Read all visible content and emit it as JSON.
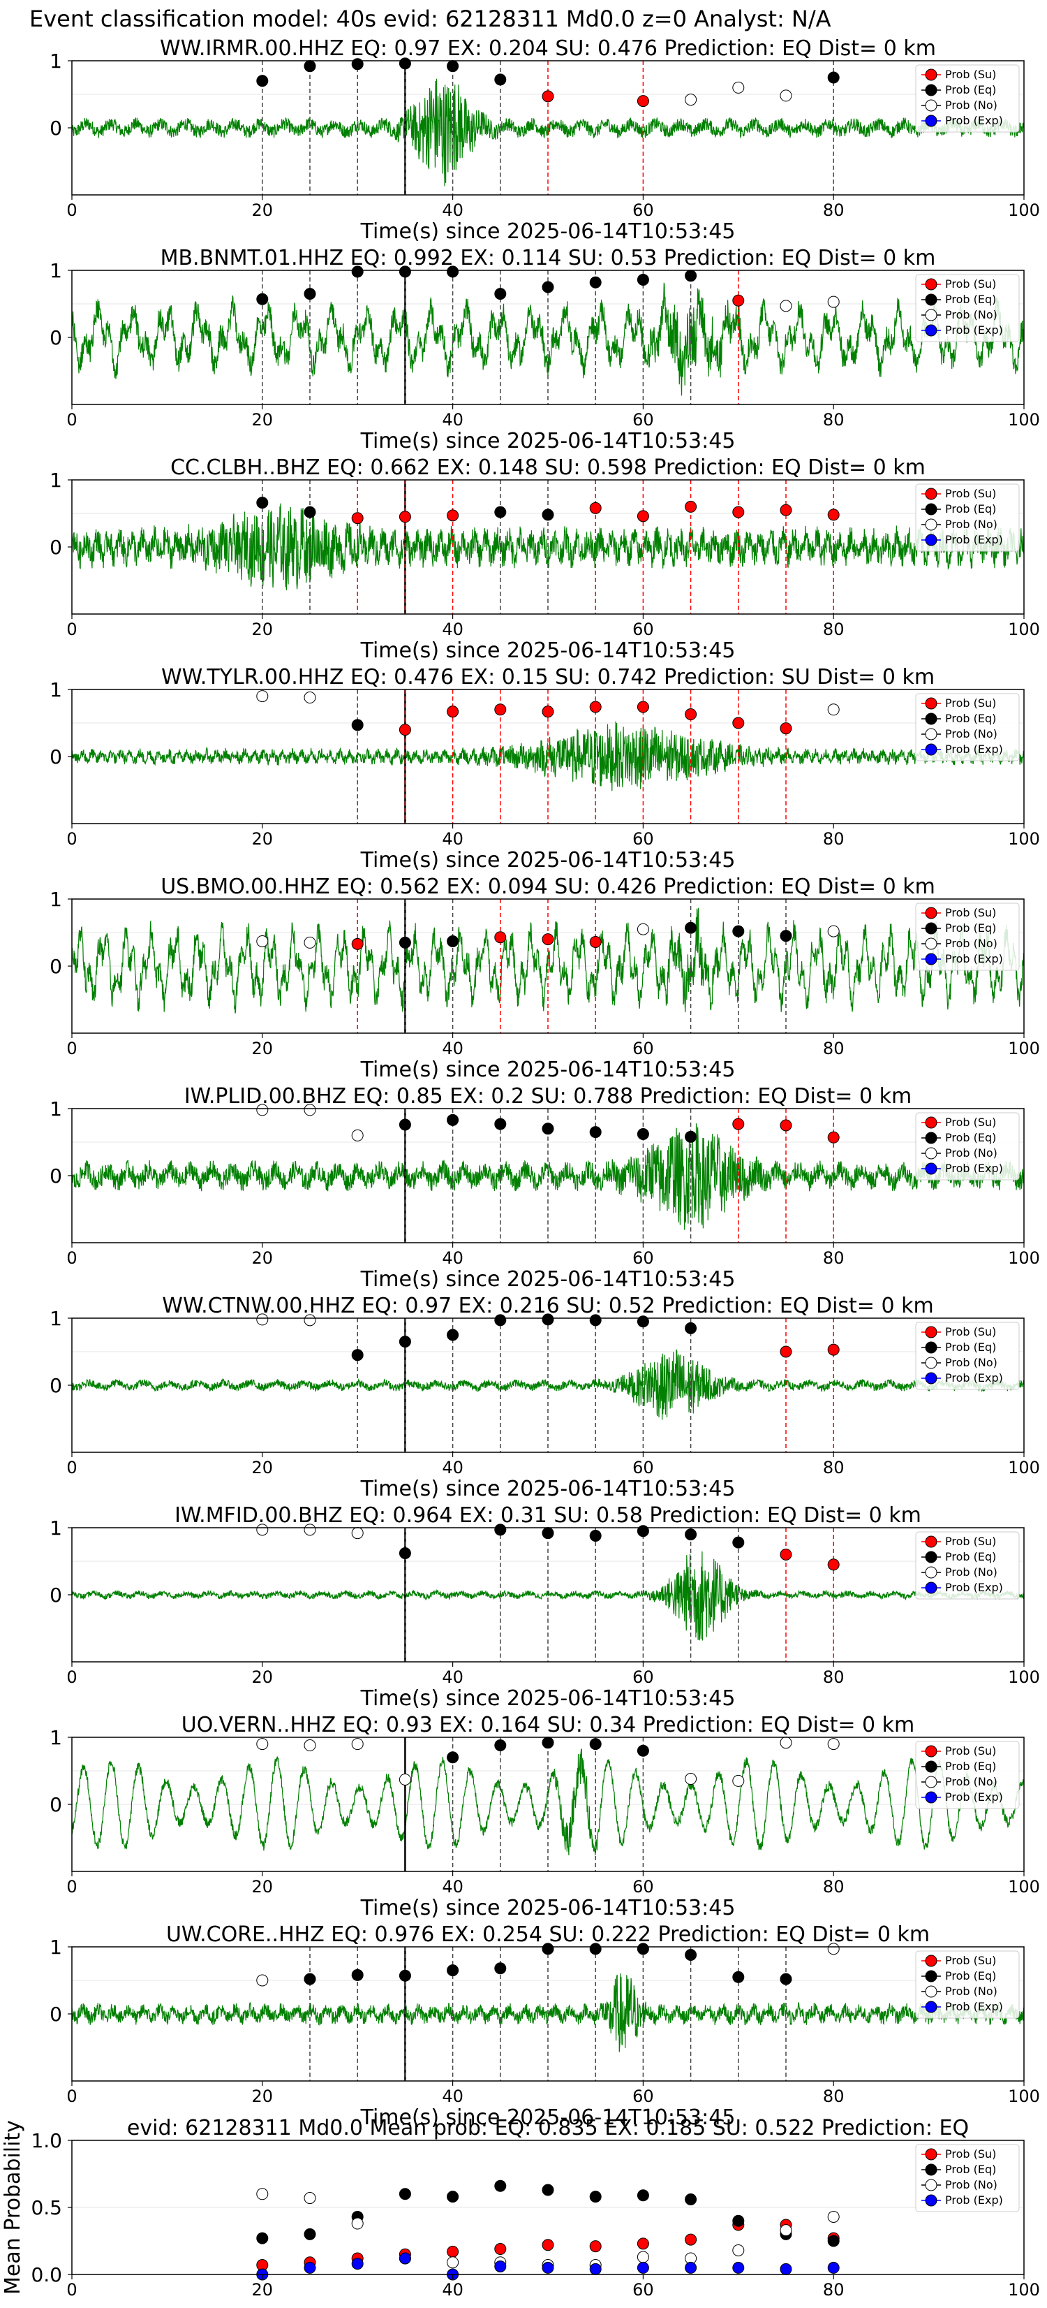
{
  "page_title": "Event classification model: 40s evid: 62128311 Md0.0 z=0 Analyst: N/A",
  "legend_labels": [
    "Prob (Su)",
    "Prob (Eq)",
    "Prob (No)",
    "Prob (Exp)"
  ],
  "colors": {
    "su": "#ff0000",
    "eq": "#000000",
    "no": "#ffffff",
    "exp": "#0000ff",
    "wave": "#008000",
    "su_line": "#ff0000",
    "eq_line": "#000000"
  },
  "chart_data": [
    {
      "type": "line",
      "title": "WW.IRMR.00.HHZ   EQ: 0.97   EX: 0.204   SU: 0.476   Prediction: EQ    Dist= 0 km",
      "xlabel": "Time(s) since 2025-06-14T10:53:45",
      "xlim": [
        0,
        100
      ],
      "ylim": [
        -1,
        1
      ],
      "x_ticks": [
        "0",
        "20",
        "40",
        "60",
        "80",
        "100"
      ],
      "y_ticks": [
        "0",
        "1"
      ],
      "arrival_time": 35,
      "waveform": {
        "style": "event",
        "amplitude": 0.12,
        "burst_center": 39,
        "burst_width": 3,
        "burst_amp": 0.9,
        "period": 2.6
      },
      "points": [
        {
          "t": 20,
          "cls": "eq",
          "p": 0.7
        },
        {
          "t": 25,
          "cls": "eq",
          "p": 0.92
        },
        {
          "t": 30,
          "cls": "eq",
          "p": 0.95
        },
        {
          "t": 35,
          "cls": "eq",
          "p": 0.96
        },
        {
          "t": 40,
          "cls": "eq",
          "p": 0.92
        },
        {
          "t": 45,
          "cls": "eq",
          "p": 0.72
        },
        {
          "t": 50,
          "cls": "su",
          "p": 0.47
        },
        {
          "t": 60,
          "cls": "su",
          "p": 0.4
        },
        {
          "t": 65,
          "cls": "no",
          "p": 0.42
        },
        {
          "t": 70,
          "cls": "no",
          "p": 0.6
        },
        {
          "t": 75,
          "cls": "no",
          "p": 0.48
        },
        {
          "t": 80,
          "cls": "eq",
          "p": 0.75
        }
      ]
    },
    {
      "type": "line",
      "title": "MB.BNMT.01.HHZ   EQ: 0.992  EX: 0.114  SU: 0.53   Prediction: EQ    Dist= 0 km",
      "xlabel": "Time(s) since 2025-06-14T10:53:45",
      "xlim": [
        0,
        100
      ],
      "ylim": [
        -1,
        1
      ],
      "x_ticks": [
        "0",
        "20",
        "40",
        "60",
        "80",
        "100"
      ],
      "y_ticks": [
        "0",
        "1"
      ],
      "arrival_time": 35,
      "waveform": {
        "style": "noisy",
        "amplitude": 0.45,
        "burst_center": 65,
        "burst_width": 4,
        "burst_amp": 0.4,
        "period": 3.5
      },
      "points": [
        {
          "t": 20,
          "cls": "eq",
          "p": 0.57
        },
        {
          "t": 25,
          "cls": "eq",
          "p": 0.65
        },
        {
          "t": 30,
          "cls": "eq",
          "p": 0.98
        },
        {
          "t": 35,
          "cls": "eq",
          "p": 0.98
        },
        {
          "t": 40,
          "cls": "eq",
          "p": 0.98
        },
        {
          "t": 45,
          "cls": "eq",
          "p": 0.65
        },
        {
          "t": 50,
          "cls": "eq",
          "p": 0.75
        },
        {
          "t": 55,
          "cls": "eq",
          "p": 0.82
        },
        {
          "t": 60,
          "cls": "eq",
          "p": 0.86
        },
        {
          "t": 65,
          "cls": "eq",
          "p": 0.92
        },
        {
          "t": 70,
          "cls": "su",
          "p": 0.55
        },
        {
          "t": 75,
          "cls": "no",
          "p": 0.47
        },
        {
          "t": 80,
          "cls": "no",
          "p": 0.53
        }
      ]
    },
    {
      "type": "line",
      "title": "CC.CLBH..BHZ   EQ: 0.662  EX: 0.148  SU: 0.598   Prediction: EQ    Dist= 0 km",
      "xlabel": "Time(s) since 2025-06-14T10:53:45",
      "xlim": [
        0,
        100
      ],
      "ylim": [
        -1,
        1
      ],
      "x_ticks": [
        "0",
        "20",
        "40",
        "60",
        "80",
        "100"
      ],
      "y_ticks": [
        "0",
        "1"
      ],
      "arrival_time": 35,
      "waveform": {
        "style": "event",
        "amplitude": 0.25,
        "burst_center": 22,
        "burst_width": 6,
        "burst_amp": 0.45,
        "period": 1.2
      },
      "points": [
        {
          "t": 20,
          "cls": "eq",
          "p": 0.66
        },
        {
          "t": 25,
          "cls": "eq",
          "p": 0.52
        },
        {
          "t": 30,
          "cls": "su",
          "p": 0.43
        },
        {
          "t": 35,
          "cls": "su",
          "p": 0.45
        },
        {
          "t": 40,
          "cls": "su",
          "p": 0.47
        },
        {
          "t": 45,
          "cls": "eq",
          "p": 0.52
        },
        {
          "t": 50,
          "cls": "eq",
          "p": 0.48
        },
        {
          "t": 55,
          "cls": "su",
          "p": 0.58
        },
        {
          "t": 60,
          "cls": "su",
          "p": 0.46
        },
        {
          "t": 65,
          "cls": "su",
          "p": 0.6
        },
        {
          "t": 70,
          "cls": "su",
          "p": 0.52
        },
        {
          "t": 75,
          "cls": "su",
          "p": 0.55
        },
        {
          "t": 80,
          "cls": "su",
          "p": 0.48
        }
      ]
    },
    {
      "type": "line",
      "title": "WW.TYLR.00.HHZ   EQ: 0.476  EX: 0.15  SU: 0.742   Prediction: SU    Dist= 0 km",
      "xlabel": "Time(s) since 2025-06-14T10:53:45",
      "xlim": [
        0,
        100
      ],
      "ylim": [
        -1,
        1
      ],
      "x_ticks": [
        "0",
        "20",
        "40",
        "60",
        "80",
        "100"
      ],
      "y_ticks": [
        "0",
        "1"
      ],
      "arrival_time": 35,
      "waveform": {
        "style": "event",
        "amplitude": 0.1,
        "burst_center": 58,
        "burst_width": 9,
        "burst_amp": 0.5,
        "period": 1.0
      },
      "points": [
        {
          "t": 20,
          "cls": "no",
          "p": 0.9
        },
        {
          "t": 25,
          "cls": "no",
          "p": 0.88
        },
        {
          "t": 30,
          "cls": "eq",
          "p": 0.47
        },
        {
          "t": 35,
          "cls": "su",
          "p": 0.4
        },
        {
          "t": 40,
          "cls": "su",
          "p": 0.67
        },
        {
          "t": 45,
          "cls": "su",
          "p": 0.7
        },
        {
          "t": 50,
          "cls": "su",
          "p": 0.67
        },
        {
          "t": 55,
          "cls": "su",
          "p": 0.74
        },
        {
          "t": 60,
          "cls": "su",
          "p": 0.74
        },
        {
          "t": 65,
          "cls": "su",
          "p": 0.63
        },
        {
          "t": 70,
          "cls": "su",
          "p": 0.5
        },
        {
          "t": 75,
          "cls": "su",
          "p": 0.42
        },
        {
          "t": 80,
          "cls": "no",
          "p": 0.7
        }
      ]
    },
    {
      "type": "line",
      "title": "US.BMO.00.HHZ   EQ: 0.562  EX: 0.094  SU: 0.426   Prediction: EQ    Dist= 0 km",
      "xlabel": "Time(s) since 2025-06-14T10:53:45",
      "xlim": [
        0,
        100
      ],
      "ylim": [
        -1,
        1
      ],
      "x_ticks": [
        "0",
        "20",
        "40",
        "60",
        "80",
        "100"
      ],
      "y_ticks": [
        "0",
        "1"
      ],
      "arrival_time": 35,
      "waveform": {
        "style": "noisy",
        "amplitude": 0.55,
        "burst_center": 65,
        "burst_width": 3,
        "burst_amp": 0.3,
        "period": 2.5
      },
      "points": [
        {
          "t": 20,
          "cls": "no",
          "p": 0.37
        },
        {
          "t": 25,
          "cls": "no",
          "p": 0.35
        },
        {
          "t": 30,
          "cls": "su",
          "p": 0.33
        },
        {
          "t": 35,
          "cls": "eq",
          "p": 0.35
        },
        {
          "t": 40,
          "cls": "eq",
          "p": 0.37
        },
        {
          "t": 45,
          "cls": "su",
          "p": 0.43
        },
        {
          "t": 50,
          "cls": "su",
          "p": 0.4
        },
        {
          "t": 55,
          "cls": "su",
          "p": 0.36
        },
        {
          "t": 60,
          "cls": "no",
          "p": 0.55
        },
        {
          "t": 65,
          "cls": "eq",
          "p": 0.57
        },
        {
          "t": 70,
          "cls": "eq",
          "p": 0.52
        },
        {
          "t": 75,
          "cls": "eq",
          "p": 0.45
        },
        {
          "t": 80,
          "cls": "no",
          "p": 0.52
        }
      ]
    },
    {
      "type": "line",
      "title": "IW.PLID.00.BHZ   EQ: 0.85  EX: 0.2  SU: 0.788   Prediction: EQ    Dist= 0 km",
      "xlabel": "Time(s) since 2025-06-14T10:53:45",
      "xlim": [
        0,
        100
      ],
      "ylim": [
        -1,
        1
      ],
      "x_ticks": [
        "0",
        "20",
        "40",
        "60",
        "80",
        "100"
      ],
      "y_ticks": [
        "0",
        "1"
      ],
      "arrival_time": 35,
      "waveform": {
        "style": "event",
        "amplitude": 0.18,
        "burst_center": 65,
        "burst_width": 5,
        "burst_amp": 0.75,
        "period": 2.2
      },
      "points": [
        {
          "t": 20,
          "cls": "no",
          "p": 0.98
        },
        {
          "t": 25,
          "cls": "no",
          "p": 0.98
        },
        {
          "t": 30,
          "cls": "no",
          "p": 0.6
        },
        {
          "t": 35,
          "cls": "eq",
          "p": 0.76
        },
        {
          "t": 40,
          "cls": "eq",
          "p": 0.83
        },
        {
          "t": 45,
          "cls": "eq",
          "p": 0.77
        },
        {
          "t": 50,
          "cls": "eq",
          "p": 0.7
        },
        {
          "t": 55,
          "cls": "eq",
          "p": 0.65
        },
        {
          "t": 60,
          "cls": "eq",
          "p": 0.62
        },
        {
          "t": 65,
          "cls": "eq",
          "p": 0.58
        },
        {
          "t": 70,
          "cls": "su",
          "p": 0.77
        },
        {
          "t": 75,
          "cls": "su",
          "p": 0.75
        },
        {
          "t": 80,
          "cls": "su",
          "p": 0.57
        }
      ]
    },
    {
      "type": "line",
      "title": "WW.CTNW.00.HHZ   EQ: 0.97  EX: 0.216  SU: 0.52   Prediction: EQ    Dist= 0 km",
      "xlabel": "Time(s) since 2025-06-14T10:53:45",
      "xlim": [
        0,
        100
      ],
      "ylim": [
        -1,
        1
      ],
      "x_ticks": [
        "0",
        "20",
        "40",
        "60",
        "80",
        "100"
      ],
      "y_ticks": [
        "0",
        "1"
      ],
      "arrival_time": 35,
      "waveform": {
        "style": "event",
        "amplitude": 0.07,
        "burst_center": 63,
        "burst_width": 4,
        "burst_amp": 0.6,
        "period": 2.8
      },
      "points": [
        {
          "t": 20,
          "cls": "no",
          "p": 0.98
        },
        {
          "t": 25,
          "cls": "no",
          "p": 0.97
        },
        {
          "t": 30,
          "cls": "eq",
          "p": 0.45
        },
        {
          "t": 35,
          "cls": "eq",
          "p": 0.65
        },
        {
          "t": 40,
          "cls": "eq",
          "p": 0.75
        },
        {
          "t": 45,
          "cls": "eq",
          "p": 0.97
        },
        {
          "t": 50,
          "cls": "eq",
          "p": 0.98
        },
        {
          "t": 55,
          "cls": "eq",
          "p": 0.97
        },
        {
          "t": 60,
          "cls": "eq",
          "p": 0.95
        },
        {
          "t": 65,
          "cls": "eq",
          "p": 0.85
        },
        {
          "t": 75,
          "cls": "su",
          "p": 0.5
        },
        {
          "t": 80,
          "cls": "su",
          "p": 0.53
        }
      ]
    },
    {
      "type": "line",
      "title": "IW.MFID.00.BHZ   EQ: 0.964  EX: 0.31  SU: 0.58   Prediction: EQ    Dist= 0 km",
      "xlabel": "Time(s) since 2025-06-14T10:53:45",
      "xlim": [
        0,
        100
      ],
      "ylim": [
        -1,
        1
      ],
      "x_ticks": [
        "0",
        "20",
        "40",
        "60",
        "80",
        "100"
      ],
      "y_ticks": [
        "0",
        "1"
      ],
      "arrival_time": 35,
      "waveform": {
        "style": "event",
        "amplitude": 0.05,
        "burst_center": 66,
        "burst_width": 3,
        "burst_amp": 0.85,
        "period": 2.4
      },
      "points": [
        {
          "t": 20,
          "cls": "no",
          "p": 0.97
        },
        {
          "t": 25,
          "cls": "no",
          "p": 0.97
        },
        {
          "t": 30,
          "cls": "no",
          "p": 0.92
        },
        {
          "t": 35,
          "cls": "eq",
          "p": 0.62
        },
        {
          "t": 45,
          "cls": "eq",
          "p": 0.97
        },
        {
          "t": 50,
          "cls": "eq",
          "p": 0.92
        },
        {
          "t": 55,
          "cls": "eq",
          "p": 0.88
        },
        {
          "t": 60,
          "cls": "eq",
          "p": 0.95
        },
        {
          "t": 65,
          "cls": "eq",
          "p": 0.9
        },
        {
          "t": 70,
          "cls": "eq",
          "p": 0.78
        },
        {
          "t": 75,
          "cls": "su",
          "p": 0.6
        },
        {
          "t": 80,
          "cls": "su",
          "p": 0.45
        }
      ]
    },
    {
      "type": "line",
      "title": "UO.VERN..HHZ   EQ: 0.93  EX: 0.164  SU: 0.34   Prediction: EQ    Dist= 0 km",
      "xlabel": "Time(s) since 2025-06-14T10:53:45",
      "xlim": [
        0,
        100
      ],
      "ylim": [
        -1,
        1
      ],
      "x_ticks": [
        "0",
        "20",
        "40",
        "60",
        "80",
        "100"
      ],
      "y_ticks": [
        "0",
        "1"
      ],
      "arrival_time": 35,
      "waveform": {
        "style": "periodic",
        "amplitude": 0.65,
        "burst_center": 53,
        "burst_width": 2,
        "burst_amp": 0.3,
        "period": 2.9
      },
      "points": [
        {
          "t": 20,
          "cls": "no",
          "p": 0.9
        },
        {
          "t": 25,
          "cls": "no",
          "p": 0.88
        },
        {
          "t": 30,
          "cls": "no",
          "p": 0.9
        },
        {
          "t": 35,
          "cls": "no",
          "p": 0.37
        },
        {
          "t": 40,
          "cls": "eq",
          "p": 0.7
        },
        {
          "t": 45,
          "cls": "eq",
          "p": 0.88
        },
        {
          "t": 50,
          "cls": "eq",
          "p": 0.92
        },
        {
          "t": 55,
          "cls": "eq",
          "p": 0.9
        },
        {
          "t": 60,
          "cls": "eq",
          "p": 0.8
        },
        {
          "t": 65,
          "cls": "no",
          "p": 0.38
        },
        {
          "t": 70,
          "cls": "no",
          "p": 0.35
        },
        {
          "t": 75,
          "cls": "no",
          "p": 0.92
        },
        {
          "t": 80,
          "cls": "no",
          "p": 0.9
        }
      ]
    },
    {
      "type": "line",
      "title": "UW.CORE..HHZ   EQ: 0.976  EX: 0.254  SU: 0.222   Prediction: EQ    Dist= 0 km",
      "xlabel": "Time(s) since 2025-06-14T10:53:45",
      "xlim": [
        0,
        100
      ],
      "ylim": [
        -1,
        1
      ],
      "x_ticks": [
        "0",
        "20",
        "40",
        "60",
        "80",
        "100"
      ],
      "y_ticks": [
        "0",
        "1"
      ],
      "arrival_time": 35,
      "waveform": {
        "style": "event",
        "amplitude": 0.13,
        "burst_center": 58,
        "burst_width": 1.5,
        "burst_amp": 0.7,
        "period": 1.6
      },
      "points": [
        {
          "t": 20,
          "cls": "no",
          "p": 0.5
        },
        {
          "t": 25,
          "cls": "eq",
          "p": 0.52
        },
        {
          "t": 30,
          "cls": "eq",
          "p": 0.58
        },
        {
          "t": 35,
          "cls": "eq",
          "p": 0.57
        },
        {
          "t": 40,
          "cls": "eq",
          "p": 0.65
        },
        {
          "t": 45,
          "cls": "eq",
          "p": 0.68
        },
        {
          "t": 50,
          "cls": "eq",
          "p": 0.97
        },
        {
          "t": 55,
          "cls": "eq",
          "p": 0.97
        },
        {
          "t": 60,
          "cls": "eq",
          "p": 0.97
        },
        {
          "t": 65,
          "cls": "eq",
          "p": 0.88
        },
        {
          "t": 70,
          "cls": "eq",
          "p": 0.55
        },
        {
          "t": 75,
          "cls": "eq",
          "p": 0.52
        },
        {
          "t": 80,
          "cls": "no",
          "p": 0.97
        }
      ]
    },
    {
      "type": "scatter",
      "title": "evid: 62128311  Md0.0   Mean prob:   EQ: 0.835  EX: 0.185  SU: 0.522   Prediction: EQ",
      "ylabel": "Mean Probability",
      "xlim": [
        0,
        100
      ],
      "ylim": [
        0,
        1
      ],
      "x_ticks": [
        "0",
        "20",
        "40",
        "60",
        "80",
        "100"
      ],
      "y_ticks": [
        "0.0",
        "0.5",
        "1.0"
      ],
      "x": [
        20,
        25,
        30,
        35,
        40,
        45,
        50,
        55,
        60,
        65,
        70,
        75,
        80
      ],
      "series": [
        {
          "name": "Prob (Su)",
          "cls": "su",
          "values": [
            0.07,
            0.09,
            0.12,
            0.15,
            0.17,
            0.19,
            0.22,
            0.21,
            0.23,
            0.26,
            0.37,
            0.37,
            0.27
          ]
        },
        {
          "name": "Prob (Eq)",
          "cls": "eq",
          "values": [
            0.27,
            0.3,
            0.43,
            0.6,
            0.58,
            0.66,
            0.63,
            0.58,
            0.59,
            0.56,
            0.4,
            0.3,
            0.25
          ]
        },
        {
          "name": "Prob (No)",
          "cls": "no",
          "values": [
            0.6,
            0.57,
            0.38,
            0.12,
            0.09,
            0.09,
            0.07,
            0.07,
            0.13,
            0.12,
            0.18,
            0.33,
            0.43
          ]
        },
        {
          "name": "Prob (Exp)",
          "cls": "exp",
          "values": [
            0.0,
            0.05,
            0.08,
            0.12,
            0.0,
            0.06,
            0.05,
            0.04,
            0.05,
            0.05,
            0.05,
            0.04,
            0.05
          ]
        }
      ]
    }
  ]
}
